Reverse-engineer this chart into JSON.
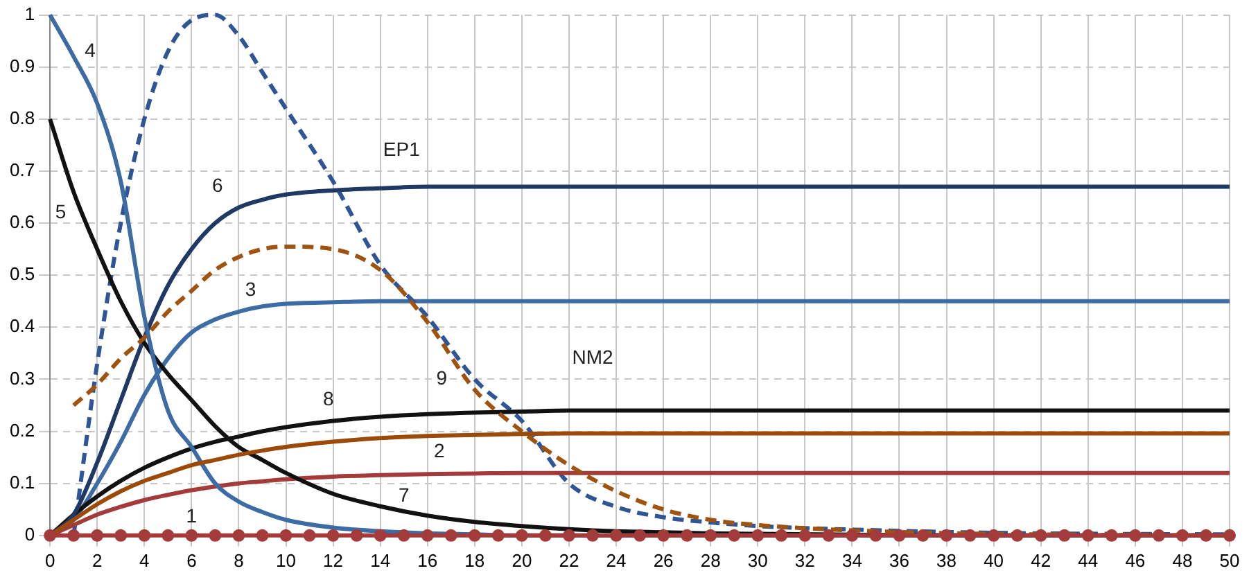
{
  "chart_data": {
    "type": "line",
    "x": [
      0,
      1,
      2,
      3,
      4,
      5,
      6,
      7,
      8,
      9,
      10,
      12,
      14,
      16,
      18,
      20,
      22,
      24,
      26,
      28,
      30,
      35,
      40,
      45,
      50
    ],
    "series": [
      {
        "name": "1",
        "color": "#a33b3b",
        "marker": "circle",
        "x": [
          0,
          1,
          2,
          3,
          4,
          5,
          6,
          7,
          8,
          9,
          10,
          11,
          12,
          13,
          14,
          15,
          16,
          17,
          18,
          19,
          20,
          21,
          22,
          23,
          24,
          25,
          26,
          27,
          28,
          29,
          30,
          31,
          32,
          33,
          34,
          35,
          36,
          37,
          38,
          39,
          40,
          41,
          42,
          43,
          44,
          45,
          46,
          47,
          48,
          49,
          50
        ],
        "values": [
          0,
          0,
          0,
          0,
          0,
          0,
          0,
          0,
          0,
          0,
          0,
          0,
          0,
          0,
          0,
          0,
          0,
          0,
          0,
          0,
          0,
          0,
          0,
          0,
          0,
          0,
          0,
          0,
          0,
          0,
          0,
          0,
          0,
          0,
          0,
          0,
          0,
          0,
          0,
          0,
          0,
          0,
          0,
          0,
          0,
          0,
          0,
          0,
          0,
          0,
          0
        ]
      },
      {
        "name": "2",
        "color": "#9c4a0a",
        "values": [
          0,
          0.03,
          0.06,
          0.085,
          0.105,
          0.12,
          0.135,
          0.145,
          0.155,
          0.163,
          0.17,
          0.18,
          0.187,
          0.191,
          0.193,
          0.195,
          0.196,
          0.196,
          0.196,
          0.196,
          0.196,
          0.196,
          0.196,
          0.196,
          0.196
        ]
      },
      {
        "name": "3",
        "color": "#a0520f",
        "line_style": "dashed",
        "values": [
          null,
          0.25,
          0.29,
          0.34,
          0.38,
          0.43,
          0.47,
          0.51,
          0.535,
          0.55,
          0.555,
          0.55,
          0.51,
          0.41,
          0.28,
          0.2,
          0.135,
          0.085,
          0.05,
          0.03,
          0.02,
          0.008,
          0.003,
          0.001,
          0
        ]
      },
      {
        "name": "4",
        "color": "#3d6ba3",
        "values": [
          1,
          0.92,
          0.83,
          0.68,
          0.42,
          0.24,
          0.17,
          0.1,
          0.065,
          0.045,
          0.03,
          0.015,
          0.008,
          0.004,
          0.002,
          0,
          0,
          0,
          0,
          0,
          0,
          0,
          0,
          0,
          0
        ]
      },
      {
        "name": "5",
        "color": "#111111",
        "values": [
          0.8,
          0.66,
          0.55,
          0.45,
          0.37,
          0.31,
          0.26,
          0.21,
          0.17,
          0.145,
          0.12,
          0.08,
          0.056,
          0.038,
          0.026,
          0.018,
          0.012,
          0.008,
          0.006,
          0.004,
          0.003,
          0.001,
          0,
          0,
          0
        ]
      },
      {
        "name": "6",
        "color": "#1f3864",
        "values": [
          0,
          0.04,
          0.14,
          0.26,
          0.38,
          0.48,
          0.55,
          0.6,
          0.63,
          0.645,
          0.655,
          0.663,
          0.667,
          0.67,
          0.67,
          0.67,
          0.67,
          0.67,
          0.67,
          0.67,
          0.67,
          0.67,
          0.67,
          0.67,
          0.67
        ]
      },
      {
        "name": "7",
        "color": "#a33b3b",
        "values": [
          0,
          0.02,
          0.04,
          0.055,
          0.068,
          0.078,
          0.087,
          0.094,
          0.1,
          0.104,
          0.108,
          0.113,
          0.116,
          0.118,
          0.119,
          0.12,
          0.12,
          0.12,
          0.12,
          0.12,
          0.12,
          0.12,
          0.12,
          0.12,
          0.12
        ]
      },
      {
        "name": "8",
        "color": "#111111",
        "values": [
          0,
          0.04,
          0.075,
          0.105,
          0.13,
          0.15,
          0.167,
          0.18,
          0.19,
          0.2,
          0.208,
          0.22,
          0.228,
          0.233,
          0.236,
          0.238,
          0.24,
          0.24,
          0.24,
          0.24,
          0.24,
          0.24,
          0.24,
          0.24,
          0.24
        ]
      },
      {
        "name": "9",
        "color": "#2f5597",
        "line_style": "dashed",
        "values": [
          null,
          0,
          0.33,
          0.6,
          0.8,
          0.93,
          0.99,
          1,
          0.96,
          0.89,
          0.82,
          0.68,
          0.52,
          0.42,
          0.3,
          0.22,
          0.1,
          0.055,
          0.035,
          0.025,
          0.018,
          0.01,
          0.005,
          0.003,
          0.002
        ]
      },
      {
        "color": "#3d6ba3",
        "values": [
          0,
          0.03,
          0.1,
          0.18,
          0.27,
          0.34,
          0.39,
          0.415,
          0.43,
          0.44,
          0.445,
          0.448,
          0.45,
          0.45,
          0.45,
          0.45,
          0.45,
          0.45,
          0.45,
          0.45,
          0.45,
          0.45,
          0.45,
          0.45,
          0.45
        ]
      }
    ],
    "annotations": [
      "EP1",
      "NM2"
    ],
    "xlim": [
      0,
      50
    ],
    "xticks": [
      0,
      2,
      4,
      6,
      8,
      10,
      12,
      14,
      16,
      18,
      20,
      22,
      24,
      26,
      28,
      30,
      32,
      34,
      36,
      38,
      40,
      42,
      44,
      46,
      48,
      50
    ],
    "ylim": [
      0,
      1
    ],
    "yticks": [
      0,
      0.1,
      0.2,
      0.3,
      0.4,
      0.5,
      0.6,
      0.7,
      0.8,
      0.9,
      1
    ],
    "grid": true,
    "legend": false,
    "marker": "none",
    "line_style": "solid"
  }
}
